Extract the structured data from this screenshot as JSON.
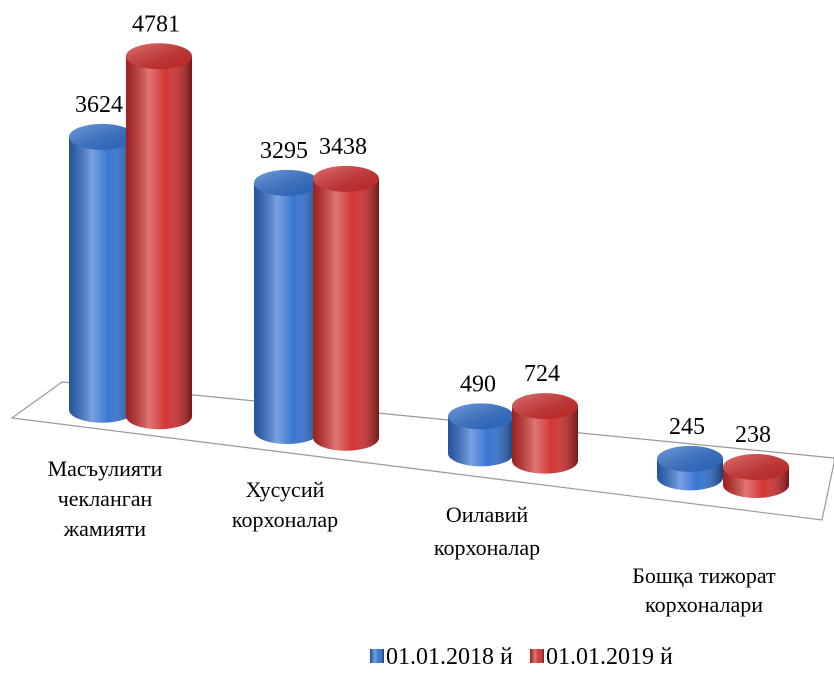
{
  "chart_data": {
    "type": "bar3d-cylinder",
    "categories": [
      [
        "Масъулияти",
        "чекланган",
        "жамияти"
      ],
      [
        "Хусусий",
        "корхоналар"
      ],
      [
        "Оилавий",
        "корхоналар"
      ],
      [
        "Бошқа тижорат",
        "корхоналари"
      ]
    ],
    "series": [
      {
        "name": "01.01.2018 й",
        "color": "#2f6fcf",
        "values": [
          3624,
          3295,
          490,
          245
        ]
      },
      {
        "name": "01.01.2019 й",
        "color": "#d12b2b",
        "values": [
          4781,
          3438,
          724,
          238
        ]
      }
    ],
    "legend": "bottom"
  }
}
